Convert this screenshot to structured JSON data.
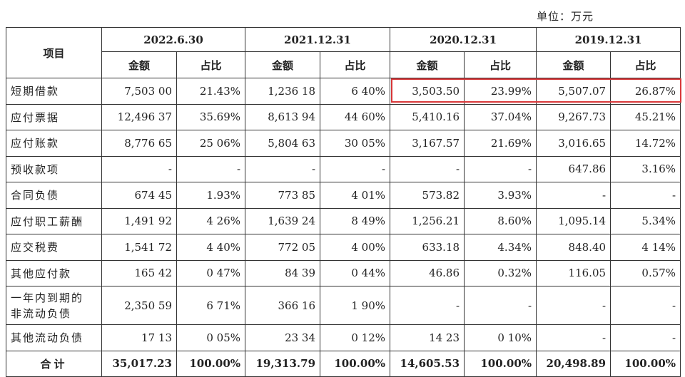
{
  "unit_label": "单位：万元",
  "header": {
    "item_label": "项目",
    "periods": [
      "2022.6.30",
      "2021.12.31",
      "2020.12.31",
      "2019.12.31"
    ],
    "amount_label": "金额",
    "ratio_label": "占比"
  },
  "rows": [
    {
      "label": "短期借款",
      "cells": [
        "7,503 00",
        "21.43%",
        "1,236 18",
        "6 40%",
        "3,503.50",
        "23.99%",
        "5,507.07",
        "26.87%"
      ]
    },
    {
      "label": "应付票据",
      "cells": [
        "12,496 37",
        "35.69%",
        "8,613 94",
        "44 60%",
        "5,410.16",
        "37.04%",
        "9,267.73",
        "45.21%"
      ]
    },
    {
      "label": "应付账款",
      "cells": [
        "8,776 65",
        "25 06%",
        "5,804 63",
        "30 05%",
        "3,167.57",
        "21.69%",
        "3,016.65",
        "14.72%"
      ]
    },
    {
      "label": "预收款项",
      "cells": [
        "-",
        "-",
        "-",
        "-",
        "-",
        "-",
        "647.86",
        "3.16%"
      ]
    },
    {
      "label": "合同负债",
      "cells": [
        "674 45",
        "1.93%",
        "773 85",
        "4 01%",
        "573.82",
        "3.93%",
        "-",
        "-"
      ]
    },
    {
      "label": "应付职工薪酬",
      "cells": [
        "1,491 92",
        "4 26%",
        "1,639 24",
        "8 49%",
        "1,256.21",
        "8.60%",
        "1,095.14",
        "5.34%"
      ]
    },
    {
      "label": "应交税费",
      "cells": [
        "1,541 72",
        "4 40%",
        "772 05",
        "4 00%",
        "633.18",
        "4.34%",
        "848.40",
        "4 14%"
      ]
    },
    {
      "label": "其他应付款",
      "cells": [
        "165 42",
        "0 47%",
        "84 39",
        "0 44%",
        "46.86",
        "0.32%",
        "116.05",
        "0.57%"
      ]
    },
    {
      "label_line1": "一年内到期的",
      "label_line2": "非流动负债",
      "cells": [
        "2,350 59",
        "6 71%",
        "366 16",
        "1 90%",
        "-",
        "-",
        "-",
        "-"
      ]
    },
    {
      "label": "其他流动负债",
      "cells": [
        "17 13",
        "0 05%",
        "23 34",
        "0 12%",
        "14 23",
        "0 10%",
        "-",
        "-"
      ]
    }
  ],
  "total": {
    "label": "合计",
    "cells": [
      "35,017.23",
      "100.00%",
      "19,313.79",
      "100.00%",
      "14,605.53",
      "100.00%",
      "20,498.89",
      "100.00%"
    ]
  },
  "highlight_color": "#d9383a"
}
